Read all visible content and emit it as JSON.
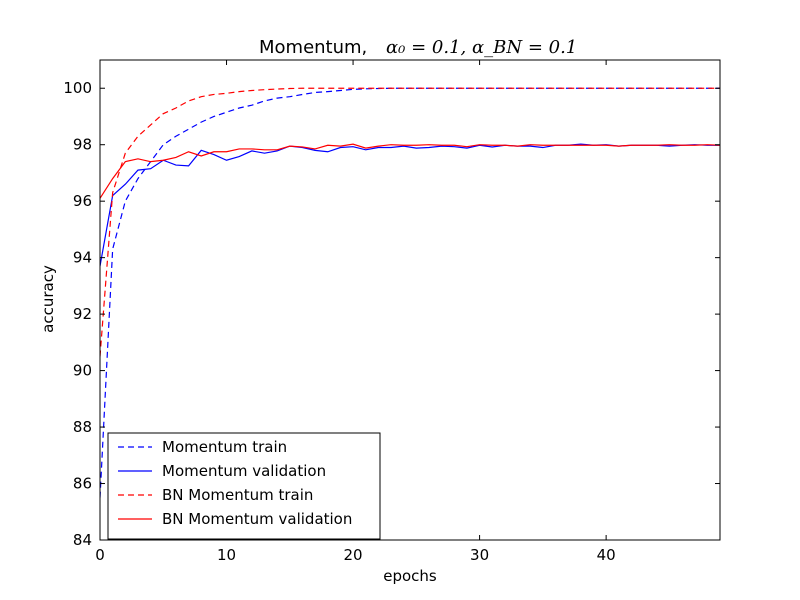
{
  "chart_data": {
    "type": "line",
    "title": "Momentum, ",
    "title_math": "α₀ = 0.1,  α_BN = 0.1",
    "xlabel": "epochs",
    "ylabel": "accuracy",
    "xlim": [
      0,
      49
    ],
    "ylim": [
      84,
      101
    ],
    "xticks": [
      0,
      10,
      20,
      30,
      40
    ],
    "yticks": [
      84,
      86,
      88,
      90,
      92,
      94,
      96,
      98,
      100
    ],
    "legend_placement": "lower-left",
    "grid": false,
    "series": [
      {
        "name": "Momentum train",
        "color": "#0000ff",
        "style": "dashed",
        "x": [
          0,
          1,
          2,
          3,
          4,
          5,
          6,
          7,
          8,
          9,
          10,
          11,
          12,
          13,
          14,
          15,
          16,
          17,
          18,
          19,
          20,
          21,
          22,
          23,
          24,
          25,
          26,
          27,
          28,
          29,
          30,
          31,
          32,
          33,
          34,
          35,
          36,
          37,
          38,
          39,
          40,
          41,
          42,
          43,
          44,
          45,
          46,
          47,
          48,
          49
        ],
        "y": [
          85.5,
          94.3,
          96.0,
          96.8,
          97.4,
          98.0,
          98.3,
          98.55,
          98.8,
          99.0,
          99.15,
          99.3,
          99.4,
          99.55,
          99.65,
          99.7,
          99.78,
          99.85,
          99.88,
          99.92,
          99.96,
          99.98,
          99.99,
          100,
          100,
          100,
          100,
          100,
          100,
          100,
          100,
          100,
          100,
          100,
          100,
          100,
          100,
          100,
          100,
          100,
          100,
          100,
          100,
          100,
          100,
          100,
          100,
          100,
          100,
          100
        ]
      },
      {
        "name": "Momentum validation",
        "color": "#0000ff",
        "style": "solid",
        "x": [
          0,
          1,
          2,
          3,
          4,
          5,
          6,
          7,
          8,
          9,
          10,
          11,
          12,
          13,
          14,
          15,
          16,
          17,
          18,
          19,
          20,
          21,
          22,
          23,
          24,
          25,
          26,
          27,
          28,
          29,
          30,
          31,
          32,
          33,
          34,
          35,
          36,
          37,
          38,
          39,
          40,
          41,
          42,
          43,
          44,
          45,
          46,
          47,
          48,
          49
        ],
        "y": [
          93.7,
          96.2,
          96.6,
          97.1,
          97.15,
          97.45,
          97.28,
          97.25,
          97.8,
          97.65,
          97.45,
          97.58,
          97.78,
          97.7,
          97.78,
          97.95,
          97.9,
          97.8,
          97.75,
          97.9,
          97.93,
          97.82,
          97.9,
          97.9,
          97.95,
          97.88,
          97.9,
          97.95,
          97.93,
          97.88,
          97.98,
          97.92,
          97.98,
          97.95,
          97.95,
          97.9,
          97.98,
          97.98,
          98.02,
          97.98,
          98.0,
          97.95,
          97.98,
          97.98,
          97.98,
          97.95,
          97.98,
          98.0,
          97.98,
          97.98
        ]
      },
      {
        "name": "BN Momentum train",
        "color": "#ff0000",
        "style": "dashed",
        "x": [
          0,
          1,
          2,
          3,
          4,
          5,
          6,
          7,
          8,
          9,
          10,
          11,
          12,
          13,
          14,
          15,
          16,
          17,
          18,
          19,
          20,
          21,
          22,
          23,
          24,
          25,
          26,
          27,
          28,
          29,
          30,
          31,
          32,
          33,
          34,
          35,
          36,
          37,
          38,
          39,
          40,
          41,
          42,
          43,
          44,
          45,
          46,
          47,
          48,
          49
        ],
        "y": [
          90.5,
          96.3,
          97.7,
          98.3,
          98.7,
          99.1,
          99.3,
          99.55,
          99.7,
          99.78,
          99.82,
          99.88,
          99.92,
          99.95,
          99.97,
          99.99,
          100,
          100,
          100,
          100,
          100,
          100,
          100,
          100,
          100,
          100,
          100,
          100,
          100,
          100,
          100,
          100,
          100,
          100,
          100,
          100,
          100,
          100,
          100,
          100,
          100,
          100,
          100,
          100,
          100,
          100,
          100,
          100,
          100,
          100
        ]
      },
      {
        "name": "BN Momentum validation",
        "color": "#ff0000",
        "style": "solid",
        "x": [
          0,
          1,
          2,
          3,
          4,
          5,
          6,
          7,
          8,
          9,
          10,
          11,
          12,
          13,
          14,
          15,
          16,
          17,
          18,
          19,
          20,
          21,
          22,
          23,
          24,
          25,
          26,
          27,
          28,
          29,
          30,
          31,
          32,
          33,
          34,
          35,
          36,
          37,
          38,
          39,
          40,
          41,
          42,
          43,
          44,
          45,
          46,
          47,
          48,
          49
        ],
        "y": [
          96.1,
          96.8,
          97.4,
          97.5,
          97.4,
          97.45,
          97.55,
          97.75,
          97.6,
          97.75,
          97.75,
          97.85,
          97.85,
          97.82,
          97.82,
          97.95,
          97.92,
          97.85,
          97.98,
          97.95,
          98.02,
          97.88,
          97.95,
          98.0,
          97.98,
          97.98,
          98.0,
          97.98,
          97.98,
          97.93,
          98.0,
          97.98,
          97.98,
          97.95,
          98.0,
          97.98,
          97.98,
          97.98,
          97.98,
          97.98,
          97.98,
          97.95,
          97.98,
          97.98,
          97.98,
          98.0,
          97.98,
          97.98,
          98.0,
          97.98
        ]
      }
    ]
  }
}
